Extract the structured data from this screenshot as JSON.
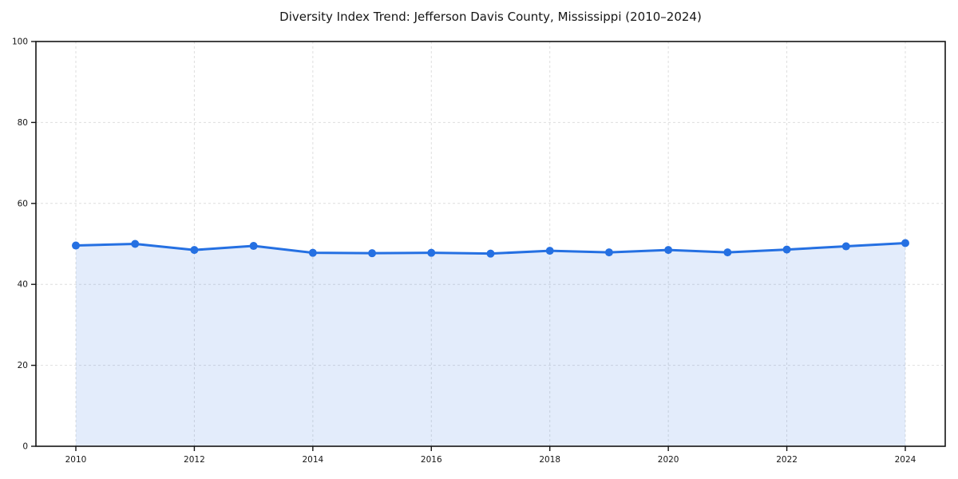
{
  "chart_data": {
    "type": "line",
    "title": "Diversity Index Trend: Jefferson Davis County, Mississippi (2010–2024)",
    "xlabel": "",
    "ylabel": "",
    "x": [
      2010,
      2011,
      2012,
      2013,
      2014,
      2015,
      2016,
      2017,
      2018,
      2019,
      2020,
      2021,
      2022,
      2023,
      2024
    ],
    "series": [
      {
        "name": "Diversity Index",
        "values": [
          49.6,
          50.0,
          48.5,
          49.5,
          47.8,
          47.7,
          47.8,
          47.6,
          48.3,
          47.9,
          48.5,
          47.9,
          48.6,
          49.4,
          50.2
        ]
      }
    ],
    "xticks": [
      "2010",
      "2012",
      "2014",
      "2016",
      "2018",
      "2020",
      "2022",
      "2024"
    ],
    "yticks": [
      "0",
      "20",
      "40",
      "60",
      "80",
      "100"
    ],
    "ylim": [
      0,
      100
    ],
    "xlim": [
      2010,
      2024
    ],
    "grid": "dashed, both axes",
    "legend": "none",
    "colors": {
      "line": "#2570e2",
      "marker": "#2570e2",
      "area_fill": "rgba(37,112,226,0.13)",
      "gridline": "#dedede",
      "spine": "#141414",
      "background": "#ffffff",
      "text": "#111111"
    },
    "marker_style": "filled circle"
  }
}
